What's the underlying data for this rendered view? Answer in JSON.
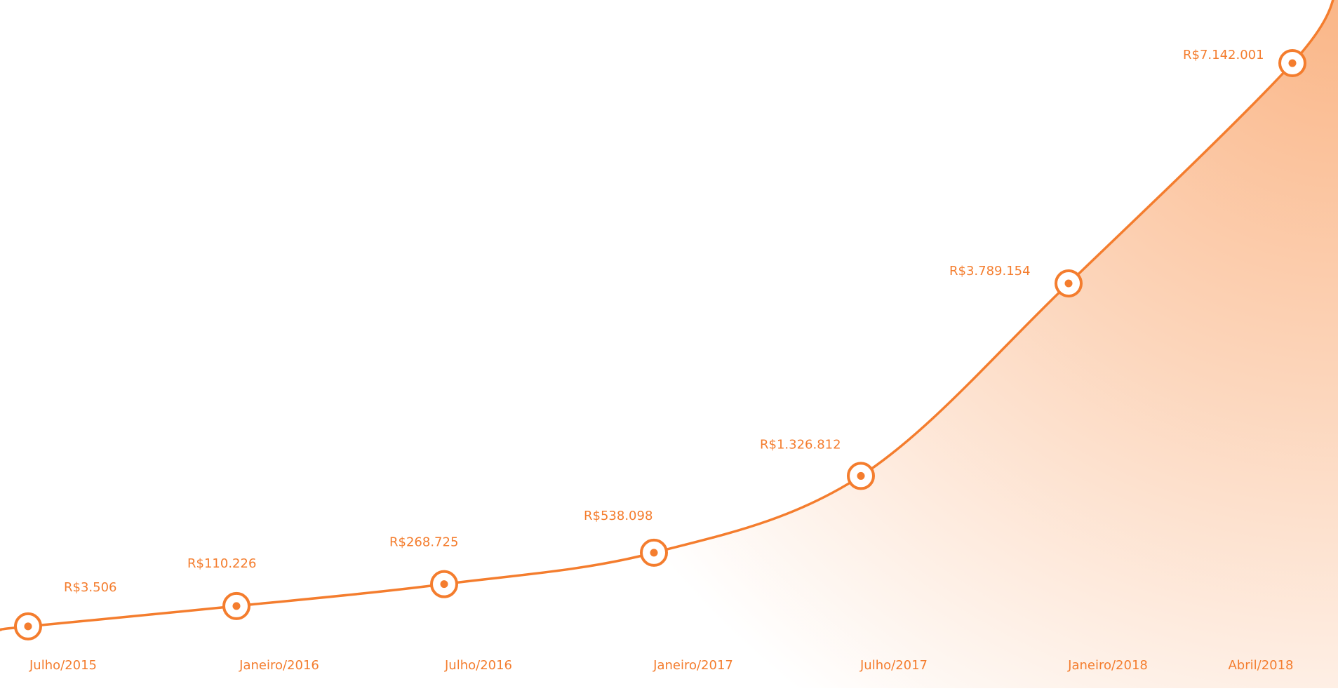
{
  "chart_data": {
    "type": "line",
    "title": "",
    "xlabel": "",
    "ylabel": "",
    "grid": false,
    "legend": "none",
    "log_scale_y": false,
    "ylim": [
      0,
      8600000
    ],
    "categories": [
      "Julho/2015",
      "Janeiro/2016",
      "Julho/2016",
      "Janeiro/2017",
      "Julho/2017",
      "Janeiro/2018",
      "Abril/2018"
    ],
    "series": [
      {
        "values": [
          3506,
          110226,
          268725,
          538098,
          1326812,
          3789154,
          7142001
        ],
        "labels": [
          "R$3.506",
          "R$110.226",
          "R$268.725",
          "R$538.098",
          "R$1.326.812",
          "R$3.789.154",
          "R$7.142.001"
        ]
      }
    ],
    "colors": {
      "line": "#F47D2E",
      "label": "#F47D2E",
      "marker_fill": "#ffffff",
      "area_fill": "#F9A46A"
    },
    "marker": "circle"
  }
}
